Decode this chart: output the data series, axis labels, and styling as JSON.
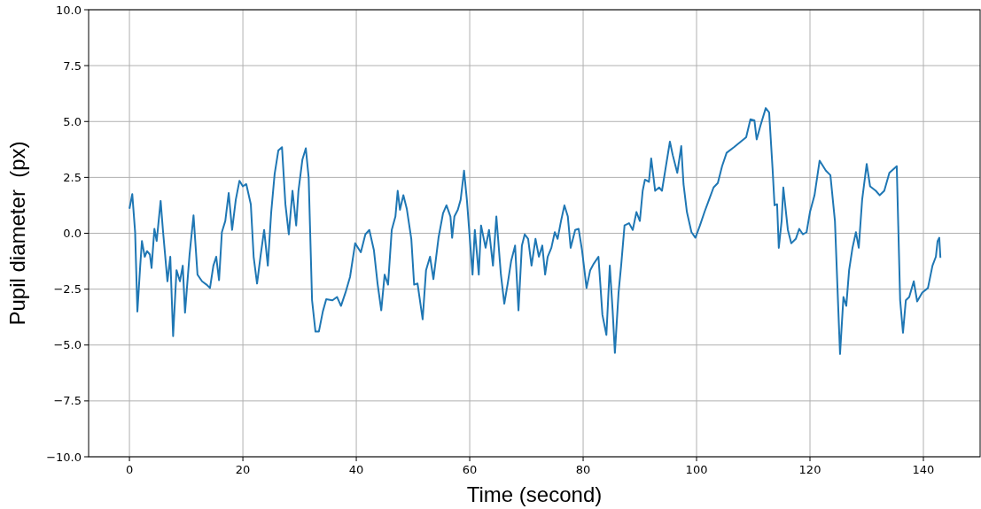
{
  "chart_data": {
    "type": "line",
    "xlabel": "Time (second)",
    "ylabel": "Pupil diameter  (px)",
    "xlim": [
      -7.2,
      150
    ],
    "xticks": [
      0,
      20,
      40,
      60,
      80,
      100,
      120,
      140
    ],
    "ylim": [
      -10,
      10
    ],
    "yticks": [
      {
        "value": -10,
        "label": "−10.0"
      },
      {
        "value": -7.5,
        "label": "−7.5"
      },
      {
        "value": -5,
        "label": "−5.0"
      },
      {
        "value": -2.5,
        "label": "−2.5"
      },
      {
        "value": 0,
        "label": "0.0"
      },
      {
        "value": 2.5,
        "label": "2.5"
      },
      {
        "value": 5,
        "label": "5.0"
      },
      {
        "value": 7.5,
        "label": "7.5"
      },
      {
        "value": 10,
        "label": "10.0"
      }
    ],
    "grid": true,
    "series": [
      {
        "color": "#1f77b4",
        "x": [
          0,
          0.5,
          1,
          1.4,
          1.9,
          2.2,
          2.7,
          3.1,
          3.6,
          3.9,
          4.4,
          4.8,
          5.5,
          5.9,
          6.7,
          7.2,
          7.7,
          8.3,
          8.9,
          9.4,
          9.8,
          10.6,
          11.3,
          12,
          12.8,
          13.6,
          14.2,
          14.8,
          15.3,
          15.8,
          16.3,
          16.9,
          17.5,
          18.1,
          18.75,
          19.4,
          20,
          20.6,
          21.4,
          21.9,
          22.5,
          23.1,
          23.75,
          24.4,
          25,
          25.6,
          26.25,
          26.9,
          27.5,
          28.1,
          28.75,
          29.4,
          29.8,
          30.5,
          31.1,
          31.6,
          32.2,
          32.8,
          33.4,
          34.1,
          34.7,
          35.8,
          36.6,
          37.3,
          38.1,
          38.9,
          39.8,
          40.8,
          41.6,
          42.3,
          43.1,
          43.75,
          44.4,
          45,
          45.6,
          46.25,
          46.9,
          47.3,
          47.7,
          48.3,
          48.9,
          49.7,
          50.2,
          50.8,
          51.7,
          52.3,
          53,
          53.6,
          54.5,
          55.3,
          55.9,
          56.6,
          56.9,
          57.3,
          57.9,
          58.4,
          59,
          59.5,
          60.5,
          60.9,
          61.6,
          62,
          62.8,
          63.4,
          64.1,
          64.7,
          65.5,
          66.1,
          66.7,
          67.3,
          68,
          68.6,
          69.2,
          69.7,
          70.3,
          70.9,
          71.6,
          72.2,
          72.8,
          73.3,
          73.75,
          74.4,
          75,
          75.5,
          76.1,
          76.7,
          77.3,
          77.8,
          78.6,
          79.2,
          79.8,
          80.6,
          81.25,
          81.9,
          82.7,
          83.4,
          84.1,
          84.7,
          85.2,
          85.6,
          86.25,
          86.7,
          87.3,
          88.1,
          88.75,
          89.4,
          90,
          90.5,
          90.9,
          91.6,
          92,
          92.7,
          93.4,
          93.9,
          94.5,
          95.3,
          95.8,
          96.6,
          97.3,
          97.7,
          98.3,
          99.1,
          99.8,
          100.6,
          101.4,
          102.2,
          103,
          103.75,
          104.5,
          105.3,
          106.6,
          107.8,
          108.75,
          109.5,
          110.2,
          110.6,
          111.25,
          112.2,
          112.8,
          113.4,
          113.75,
          114.2,
          114.5,
          115,
          115.3,
          116.1,
          116.7,
          117.5,
          118.1,
          118.75,
          119.4,
          120,
          120.8,
          121.7,
          122.8,
          123.6,
          124.4,
          125,
          125.3,
          125.9,
          126.4,
          126.9,
          127.5,
          128.1,
          128.6,
          129.2,
          130,
          130.6,
          131.6,
          132.3,
          133.1,
          134,
          135.3,
          135.9,
          136.4,
          136.9,
          137.5,
          138.3,
          138.9,
          139.8,
          140.8,
          141.6,
          142.2,
          142.5,
          142.8,
          143
        ],
        "values": [
          1.1,
          1.75,
          0.05,
          -3.5,
          -1.45,
          -0.35,
          -1.05,
          -0.8,
          -0.95,
          -1.55,
          0.2,
          -0.35,
          1.45,
          0.15,
          -2.15,
          -1.05,
          -4.6,
          -1.65,
          -2.15,
          -1.45,
          -3.55,
          -0.95,
          0.8,
          -1.85,
          -2.15,
          -2.3,
          -2.45,
          -1.45,
          -1.05,
          -2.1,
          0.05,
          0.55,
          1.8,
          0.15,
          1.5,
          2.35,
          2.1,
          2.2,
          1.3,
          -1.05,
          -2.25,
          -1.05,
          0.15,
          -1.45,
          0.95,
          2.65,
          3.7,
          3.85,
          1.3,
          -0.05,
          1.9,
          0.35,
          1.9,
          3.3,
          3.8,
          2.5,
          -3,
          -4.4,
          -4.4,
          -3.5,
          -2.95,
          -3,
          -2.85,
          -3.25,
          -2.65,
          -1.95,
          -0.45,
          -0.85,
          -0.05,
          0.15,
          -0.75,
          -2.25,
          -3.45,
          -1.85,
          -2.3,
          0.15,
          0.75,
          1.9,
          1.05,
          1.7,
          1.1,
          -0.25,
          -2.3,
          -2.25,
          -3.85,
          -1.65,
          -1.05,
          -2.05,
          -0.2,
          0.9,
          1.25,
          0.75,
          -0.2,
          0.75,
          1.05,
          1.5,
          2.8,
          1.5,
          -1.85,
          0.15,
          -1.85,
          0.35,
          -0.65,
          0.15,
          -1.45,
          0.75,
          -1.85,
          -3.15,
          -2.25,
          -1.25,
          -0.55,
          -3.45,
          -0.55,
          -0.05,
          -0.25,
          -1.45,
          -0.25,
          -1.05,
          -0.55,
          -1.85,
          -1.05,
          -0.65,
          0.05,
          -0.25,
          0.55,
          1.25,
          0.75,
          -0.65,
          0.15,
          0.2,
          -0.75,
          -2.45,
          -1.65,
          -1.35,
          -1.05,
          -3.65,
          -4.55,
          -1.45,
          -3.45,
          -5.35,
          -2.65,
          -1.45,
          0.35,
          0.45,
          0.15,
          0.95,
          0.55,
          1.9,
          2.4,
          2.3,
          3.35,
          1.9,
          2.05,
          1.9,
          2.85,
          4.1,
          3.5,
          2.7,
          3.9,
          2.2,
          0.95,
          0.05,
          -0.2,
          0.35,
          0.95,
          1.5,
          2.05,
          2.25,
          3,
          3.6,
          3.85,
          4.1,
          4.3,
          5.1,
          5.05,
          4.2,
          4.8,
          5.6,
          5.4,
          2.9,
          1.25,
          1.3,
          -0.65,
          0.55,
          2.05,
          0.15,
          -0.45,
          -0.25,
          0.2,
          -0.05,
          0.05,
          0.95,
          1.7,
          3.25,
          2.8,
          2.6,
          0.55,
          -3.45,
          -5.4,
          -2.85,
          -3.25,
          -1.65,
          -0.65,
          0.05,
          -0.65,
          1.5,
          3.1,
          2.1,
          1.9,
          1.7,
          1.9,
          2.7,
          3,
          -3,
          -4.45,
          -3,
          -2.85,
          -2.15,
          -3.05,
          -2.65,
          -2.45,
          -1.45,
          -1.05,
          -0.35,
          -0.2,
          -1.1
        ]
      }
    ]
  }
}
